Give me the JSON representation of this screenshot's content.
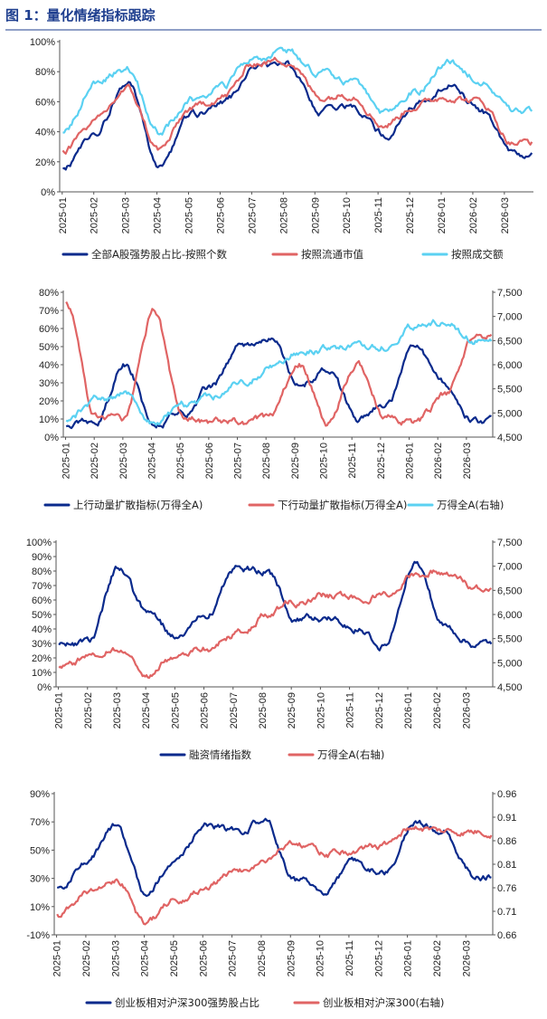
{
  "figure": {
    "title": "图 1：量化情绪指标跟踪"
  },
  "colors": {
    "navy": "#0a2a8c",
    "red": "#e06464",
    "cyan": "#5bd1f2",
    "axis": "#555555",
    "rule": "#1f3f8f"
  },
  "chart_data": [
    {
      "type": "line",
      "x": [
        "2025-01",
        "2025-02",
        "2025-03",
        "2025-04",
        "2025-05",
        "2025-06",
        "2025-07",
        "2025-08",
        "2025-09",
        "2025-10",
        "2025-11",
        "2025-12",
        "2026-01",
        "2026-02",
        "2026-03"
      ],
      "ylim": [
        0,
        100
      ],
      "yticks": [
        "0%",
        "20%",
        "40%",
        "60%",
        "80%",
        "100%"
      ],
      "xticks": [
        "2025-01",
        "2025-02",
        "2025-03",
        "2025-04",
        "2025-05",
        "2025-06",
        "2025-07",
        "2025-08",
        "2025-09",
        "2025-10",
        "2025-11",
        "2025-12",
        "2026-01",
        "2026-02",
        "2026-03"
      ],
      "series": [
        {
          "name": "全部A股强势股占比-按照个数",
          "color": "#0a2a8c",
          "values": [
            14,
            40,
            72,
            16,
            50,
            58,
            82,
            85,
            52,
            58,
            38,
            58,
            72,
            54,
            24
          ]
        },
        {
          "name": "按照流通市值",
          "color": "#e06464",
          "values": [
            28,
            46,
            68,
            28,
            55,
            64,
            86,
            88,
            63,
            66,
            45,
            58,
            64,
            60,
            33
          ]
        },
        {
          "name": "按照成交额",
          "color": "#5bd1f2",
          "values": [
            38,
            72,
            82,
            40,
            62,
            70,
            90,
            94,
            78,
            74,
            52,
            68,
            86,
            75,
            52
          ]
        }
      ]
    },
    {
      "type": "line",
      "x": [
        "2025-01",
        "2025-02",
        "2025-03",
        "2025-04",
        "2025-05",
        "2025-06",
        "2025-07",
        "2025-08",
        "2025-09",
        "2025-10",
        "2025-11",
        "2025-12",
        "2026-01",
        "2026-02",
        "2026-03"
      ],
      "ylim": [
        0,
        80
      ],
      "yticks": [
        "0%",
        "10%",
        "20%",
        "30%",
        "40%",
        "50%",
        "60%",
        "70%",
        "80%"
      ],
      "y2lim": [
        4500,
        7500
      ],
      "y2ticks": [
        "4,500",
        "5,000",
        "5,500",
        "6,000",
        "6,500",
        "7,000",
        "7,500"
      ],
      "xticks": [
        "2025-01",
        "2025-02",
        "2025-03",
        "2025-04",
        "2025-05",
        "2025-06",
        "2025-07",
        "2025-08",
        "2025-09",
        "2025-10",
        "2025-11",
        "2025-12",
        "2026-01",
        "2026-02",
        "2026-03"
      ],
      "series": [
        {
          "name": "上行动量扩散指标(万得全A)",
          "color": "#0a2a8c",
          "axis": "left",
          "values": [
            5,
            8,
            40,
            8,
            12,
            28,
            52,
            56,
            28,
            38,
            10,
            18,
            50,
            30,
            9
          ]
        },
        {
          "name": "下行动量扩散指标(万得全A)",
          "color": "#e06464",
          "axis": "left",
          "values": [
            74,
            12,
            10,
            70,
            12,
            8,
            8,
            10,
            40,
            8,
            40,
            10,
            8,
            22,
            56
          ]
        },
        {
          "name": "万得全A(右轴)",
          "color": "#5bd1f2",
          "axis": "right",
          "values": [
            4850,
            5250,
            5400,
            4800,
            5150,
            5300,
            5600,
            5950,
            6300,
            6350,
            6350,
            6400,
            6800,
            6900,
            6500
          ]
        }
      ]
    },
    {
      "type": "line",
      "x": [
        "2025-01",
        "2025-02",
        "2025-03",
        "2025-04",
        "2025-05",
        "2025-06",
        "2025-07",
        "2025-08",
        "2025-09",
        "2025-10",
        "2025-11",
        "2025-12",
        "2026-01",
        "2026-02",
        "2026-03"
      ],
      "ylim": [
        0,
        100
      ],
      "yticks": [
        "0%",
        "10%",
        "20%",
        "30%",
        "40%",
        "50%",
        "60%",
        "70%",
        "80%",
        "90%",
        "100%"
      ],
      "y2lim": [
        4500,
        7500
      ],
      "y2ticks": [
        "4,500",
        "5,000",
        "5,500",
        "6,000",
        "6,500",
        "7,000",
        "7,500"
      ],
      "xticks": [
        "2025-01",
        "2025-02",
        "2025-03",
        "2025-04",
        "2025-05",
        "2025-06",
        "2025-07",
        "2025-08",
        "2025-09",
        "2025-10",
        "2025-11",
        "2025-12",
        "2026-01",
        "2026-02",
        "2026-03"
      ],
      "series": [
        {
          "name": "融资情绪指数",
          "color": "#0a2a8c",
          "axis": "left",
          "values": [
            28,
            30,
            82,
            50,
            34,
            50,
            82,
            80,
            48,
            48,
            40,
            28,
            88,
            42,
            30
          ]
        },
        {
          "name": "万得全A(右轴)",
          "color": "#e06464",
          "axis": "right",
          "values": [
            4850,
            5100,
            5300,
            4750,
            5150,
            5300,
            5600,
            6000,
            6250,
            6400,
            6350,
            6450,
            6850,
            6900,
            6550
          ]
        }
      ]
    },
    {
      "type": "line",
      "x": [
        "2025-01",
        "2025-02",
        "2025-03",
        "2025-04",
        "2025-05",
        "2025-06",
        "2025-07",
        "2025-08",
        "2025-09",
        "2025-10",
        "2025-11",
        "2025-12",
        "2026-01",
        "2026-02",
        "2026-03"
      ],
      "ylim": [
        -10,
        90
      ],
      "yticks": [
        "-10%",
        "10%",
        "30%",
        "50%",
        "70%",
        "90%"
      ],
      "y2lim": [
        0.66,
        0.96
      ],
      "y2ticks": [
        "0.66",
        "0.71",
        "0.76",
        "0.81",
        "0.86",
        "0.91",
        "0.96"
      ],
      "xticks": [
        "2025-01",
        "2025-02",
        "2025-03",
        "2025-04",
        "2025-05",
        "2025-06",
        "2025-07",
        "2025-08",
        "2025-09",
        "2025-10",
        "2025-11",
        "2025-12",
        "2026-01",
        "2026-02",
        "2026-03"
      ],
      "series": [
        {
          "name": "创业板相对沪深300强势股占比",
          "color": "#0a2a8c",
          "axis": "left",
          "values": [
            22,
            40,
            68,
            18,
            45,
            68,
            62,
            72,
            28,
            22,
            40,
            35,
            70,
            62,
            32
          ]
        },
        {
          "name": "创业板相对沪深300(右轴)",
          "color": "#e06464",
          "axis": "right",
          "values": [
            0.7,
            0.75,
            0.78,
            0.68,
            0.74,
            0.76,
            0.79,
            0.82,
            0.86,
            0.83,
            0.84,
            0.85,
            0.89,
            0.88,
            0.88
          ]
        }
      ]
    }
  ]
}
